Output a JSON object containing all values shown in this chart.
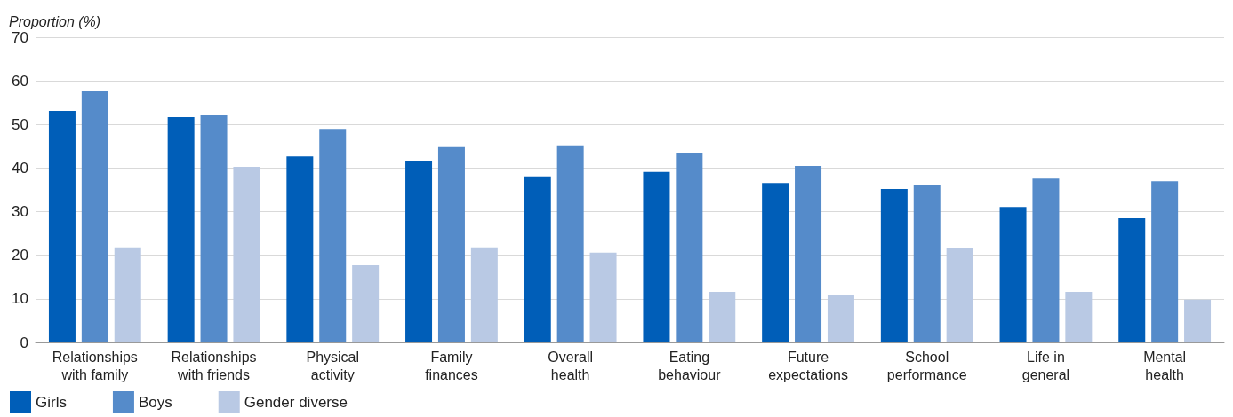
{
  "chart_data": {
    "type": "bar",
    "ylabel": "Proportion (%)",
    "categories": [
      "Relationships\nwith family",
      "Relationships\nwith friends",
      "Physical\nactivity",
      "Family\nfinances",
      "Overall\nhealth",
      "Eating\nbehaviour",
      "Future\nexpectations",
      "School\nperformance",
      "Life in\ngeneral",
      "Mental\nhealth"
    ],
    "series": [
      {
        "name": "Girls",
        "color": "#005eb8",
        "values": [
          53.1,
          51.7,
          42.7,
          41.7,
          38.1,
          39.1,
          36.6,
          35.2,
          31.1,
          28.5
        ]
      },
      {
        "name": "Boys",
        "color": "#558bca",
        "values": [
          57.6,
          52.1,
          49.0,
          44.8,
          45.2,
          43.5,
          40.5,
          36.2,
          37.6,
          37.0
        ]
      },
      {
        "name": "Gender diverse",
        "color": "#b9c9e4",
        "values": [
          21.8,
          40.3,
          17.7,
          21.8,
          20.6,
          11.6,
          10.8,
          21.6,
          11.6,
          9.8
        ]
      }
    ],
    "ylim": [
      0,
      70
    ],
    "yticks": [
      0,
      10,
      20,
      30,
      40,
      50,
      60,
      70
    ],
    "grid": "y",
    "legend": "bottom left"
  }
}
